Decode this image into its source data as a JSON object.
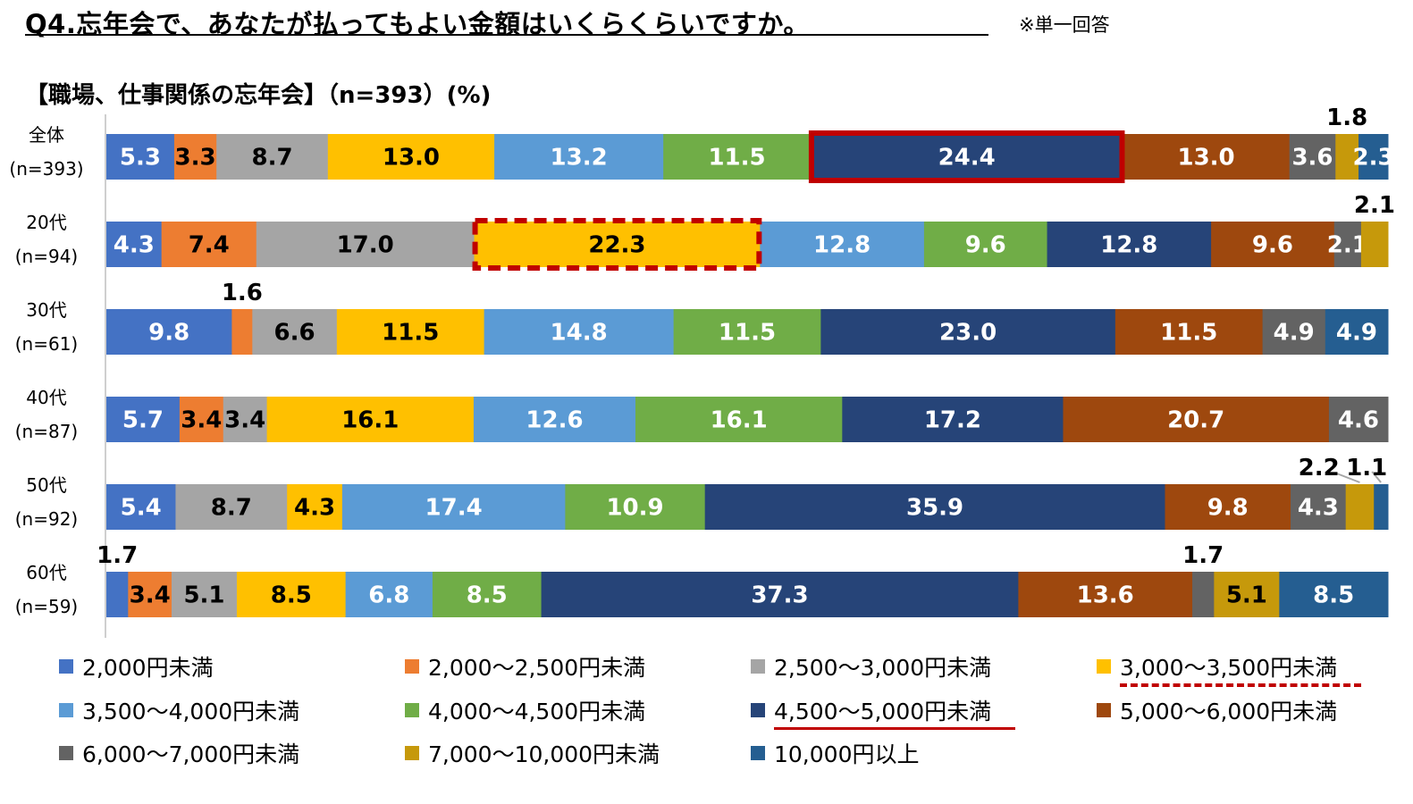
{
  "header": {
    "question": "Q4.忘年会で、あなたが払ってもよい金額はいくらくらいですか。",
    "note": "※単一回答"
  },
  "subtitle": "【職場、仕事関係の忘年会】（n=393）(%)",
  "colors": [
    "#4472C4",
    "#ED7D31",
    "#A5A5A5",
    "#FFC000",
    "#5B9BD5",
    "#70AD47",
    "#264478",
    "#9E480E",
    "#636363",
    "#C6990B",
    "#255E91"
  ],
  "highlight_color": "#C00000",
  "chart_data": {
    "type": "bar",
    "orientation": "horizontal",
    "stacked": true,
    "unit": "%",
    "title": "【職場、仕事関係の忘年会】（n=393）(%)",
    "xlim": [
      0,
      100
    ],
    "categories": [
      {
        "label": "全体",
        "n": "(n=393)"
      },
      {
        "label": "20代",
        "n": "(n=94)"
      },
      {
        "label": "30代",
        "n": "(n=61)"
      },
      {
        "label": "40代",
        "n": "(n=87)"
      },
      {
        "label": "50代",
        "n": "(n=92)"
      },
      {
        "label": "60代",
        "n": "(n=59)"
      }
    ],
    "series": [
      {
        "name": "2,000円未満",
        "values": [
          5.3,
          4.3,
          9.8,
          5.7,
          5.4,
          1.7
        ]
      },
      {
        "name": "2,000～2,500円未満",
        "values": [
          3.3,
          7.4,
          1.6,
          3.4,
          0,
          3.4
        ]
      },
      {
        "name": "2,500～3,000円未満",
        "values": [
          8.7,
          17.0,
          6.6,
          3.4,
          8.7,
          5.1
        ]
      },
      {
        "name": "3,000～3,500円未満",
        "values": [
          13.0,
          22.3,
          11.5,
          16.1,
          4.3,
          8.5
        ]
      },
      {
        "name": "3,500～4,000円未満",
        "values": [
          13.2,
          12.8,
          14.8,
          12.6,
          17.4,
          6.8
        ]
      },
      {
        "name": "4,000～4,500円未満",
        "values": [
          11.5,
          9.6,
          11.5,
          16.1,
          10.9,
          8.5
        ]
      },
      {
        "name": "4,500～5,000円未満",
        "values": [
          24.4,
          12.8,
          23.0,
          17.2,
          35.9,
          37.3
        ]
      },
      {
        "name": "5,000～6,000円未満",
        "values": [
          13.0,
          9.6,
          11.5,
          20.7,
          9.8,
          13.6
        ]
      },
      {
        "name": "6,000～7,000円未満",
        "values": [
          3.6,
          2.1,
          4.9,
          4.6,
          4.3,
          1.7
        ]
      },
      {
        "name": "7,000～10,000円未満",
        "values": [
          1.8,
          2.1,
          0,
          0,
          2.2,
          5.1
        ]
      },
      {
        "name": "10,000円以上",
        "values": [
          2.3,
          0,
          4.9,
          0,
          1.1,
          8.5
        ]
      }
    ],
    "outside_labels": [
      {
        "row": 0,
        "series": 9,
        "text": "1.8"
      },
      {
        "row": 1,
        "series": 9,
        "text": "2.1"
      },
      {
        "row": 2,
        "series": 1,
        "text": "1.6"
      },
      {
        "row": 4,
        "series": 9,
        "text": "2.2"
      },
      {
        "row": 4,
        "series": 10,
        "text": "1.1"
      },
      {
        "row": 5,
        "series": 0,
        "text": "1.7"
      },
      {
        "row": 5,
        "series": 8,
        "text": "1.7"
      }
    ],
    "highlights": [
      {
        "row": 0,
        "series": 6,
        "style": "solid"
      },
      {
        "row": 1,
        "series": 3,
        "style": "dashed"
      }
    ],
    "legend_highlights": [
      {
        "series": 6,
        "style": "solid"
      },
      {
        "series": 3,
        "style": "dashed"
      }
    ]
  }
}
